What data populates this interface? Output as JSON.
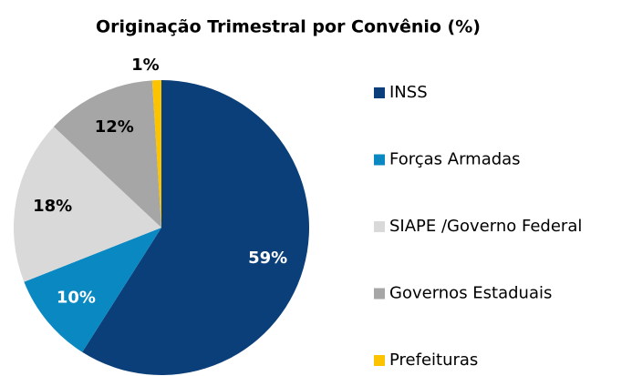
{
  "chart_data": {
    "type": "pie",
    "title": "Originação Trimestral por Convênio (%)",
    "categories": [
      "INSS",
      "Forças Armadas",
      "SIAPE /Governo Federal",
      "Governos Estaduais",
      "Prefeituras"
    ],
    "values": [
      59,
      10,
      18,
      12,
      1
    ],
    "value_labels": [
      "59%",
      "10%",
      "18%",
      "12%",
      "1%"
    ],
    "colors": [
      "#0b3f7a",
      "#0a88c2",
      "#d9d9d9",
      "#a6a6a6",
      "#fbc300"
    ],
    "legend": "right"
  }
}
